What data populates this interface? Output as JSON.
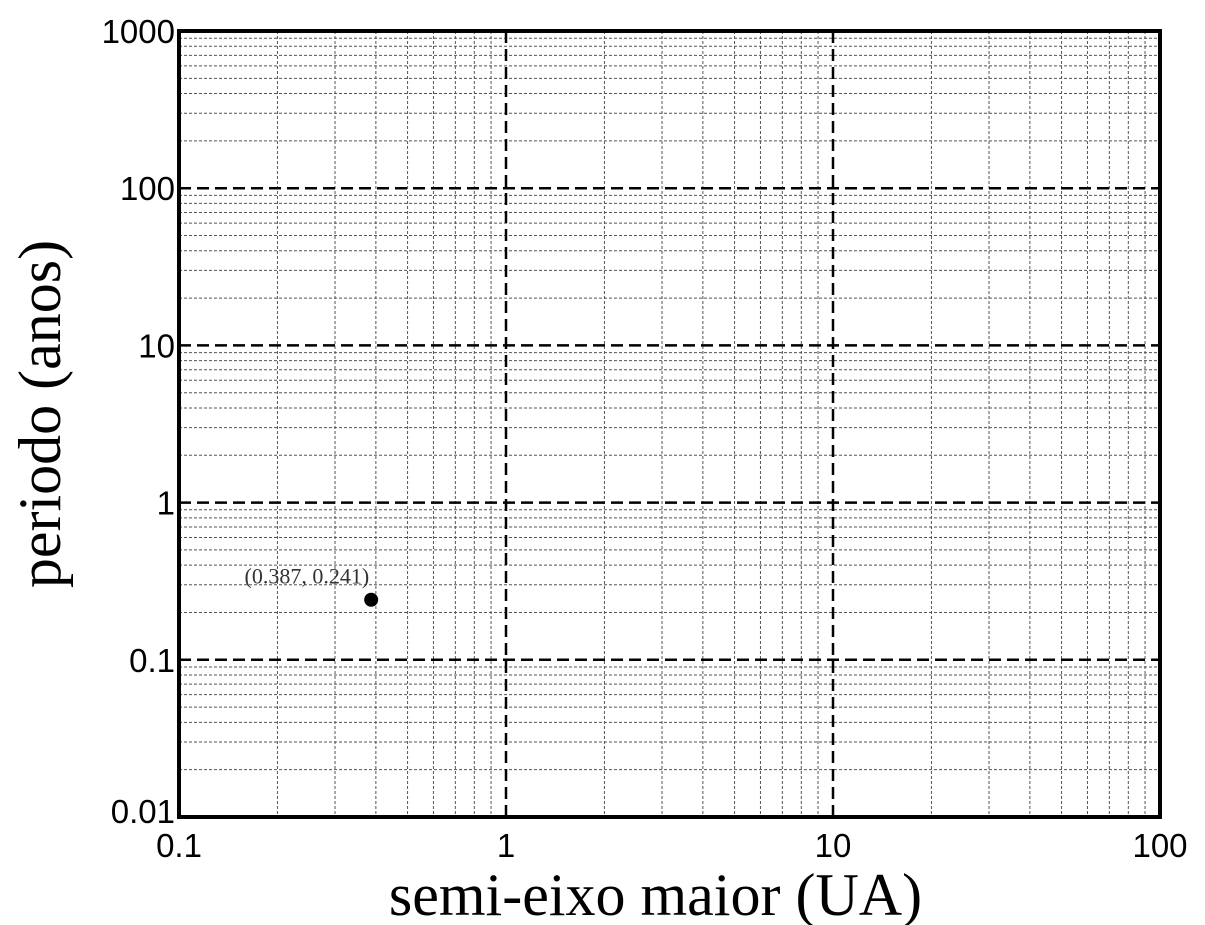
{
  "chart_data": {
    "type": "scatter",
    "title": "",
    "xlabel": "semi-eixo maior (UA)",
    "ylabel": "periodo (anos)",
    "x_scale": "log",
    "y_scale": "log",
    "xlim": [
      0.1,
      100
    ],
    "ylim": [
      0.01,
      1000
    ],
    "grid": true,
    "x_ticks": [
      0.1,
      1,
      10,
      100
    ],
    "x_tick_labels": [
      "0.1",
      "1",
      "10",
      "100"
    ],
    "y_ticks": [
      0.01,
      0.1,
      1,
      10,
      100,
      1000
    ],
    "y_tick_labels": [
      "0.01",
      "0.1",
      "1",
      "10",
      "100",
      "1000"
    ],
    "points": [
      {
        "x": 0.387,
        "y": 0.241,
        "label": "(0.387, 0.241)"
      }
    ]
  },
  "colors": {
    "axis": "#000000",
    "major_grid": "#000000",
    "minor_grid": "#555555",
    "point": "#000000"
  }
}
